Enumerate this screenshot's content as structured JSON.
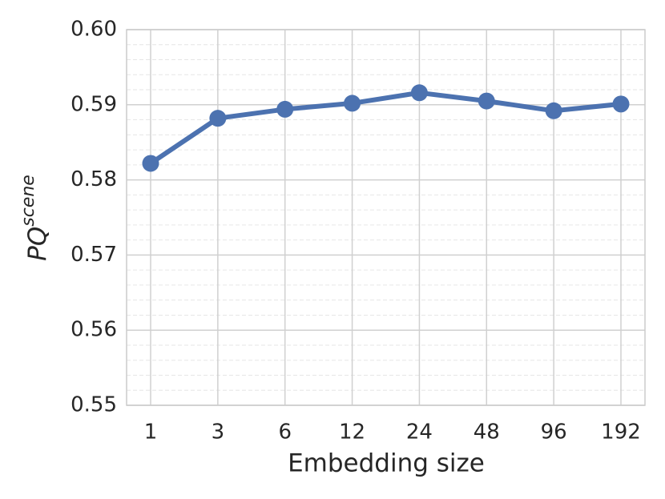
{
  "chart_data": {
    "type": "line",
    "xlabel": "Embedding size",
    "ylabel": "PQ",
    "ylabel_superscript": "scene",
    "categories": [
      "1",
      "3",
      "6",
      "12",
      "24",
      "48",
      "96",
      "192"
    ],
    "series": [
      {
        "name": "PQ scene",
        "color": "#4c72b0",
        "values": [
          0.5822,
          0.5882,
          0.5894,
          0.5902,
          0.5916,
          0.5905,
          0.5892,
          0.5901
        ]
      }
    ],
    "ylim": [
      0.55,
      0.6
    ],
    "yticks": [
      0.55,
      0.56,
      0.57,
      0.58,
      0.59,
      {
        "value": 0.6,
        "label": "0.60"
      }
    ],
    "yminorticks": [
      0.552,
      0.554,
      0.556,
      0.558,
      0.562,
      0.564,
      0.566,
      0.568,
      0.572,
      0.574,
      0.576,
      0.578,
      0.582,
      0.584,
      0.586,
      0.588,
      0.592,
      0.594,
      0.596,
      0.598
    ],
    "grid": true,
    "minor_grid": true
  }
}
